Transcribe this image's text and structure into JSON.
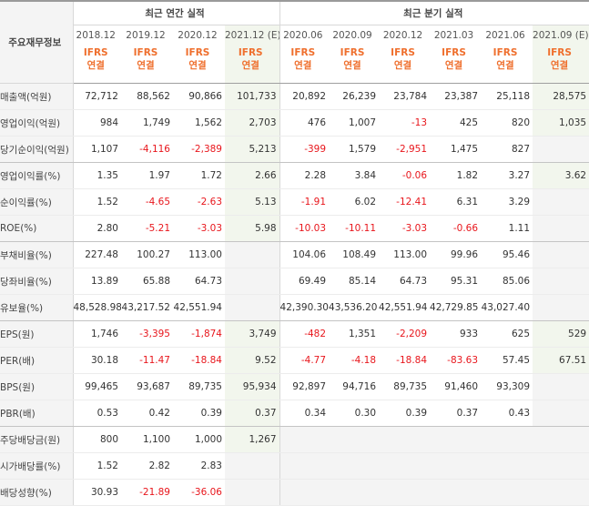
{
  "header": {
    "row_label": "주요재무정보",
    "annual_title": "최근 연간 실적",
    "quarterly_title": "최근 분기 실적",
    "ifrs_line1": "IFRS",
    "ifrs_line2": "연결"
  },
  "periods": [
    {
      "label": "2018.12",
      "est": false
    },
    {
      "label": "2019.12",
      "est": false
    },
    {
      "label": "2020.12",
      "est": false
    },
    {
      "label": "2021.12 (E)",
      "est": true
    },
    {
      "label": "2020.06",
      "est": false
    },
    {
      "label": "2020.09",
      "est": false
    },
    {
      "label": "2020.12",
      "est": false
    },
    {
      "label": "2021.03",
      "est": false
    },
    {
      "label": "2021.06",
      "est": false
    },
    {
      "label": "2021.09 (E)",
      "est": true
    }
  ],
  "rows": [
    {
      "label": "매출액(억원)",
      "values": [
        "72,712",
        "88,562",
        "90,866",
        "101,733",
        "20,892",
        "26,239",
        "23,784",
        "23,387",
        "25,118",
        "28,575"
      ]
    },
    {
      "label": "영업이익(억원)",
      "values": [
        "984",
        "1,749",
        "1,562",
        "2,703",
        "476",
        "1,007",
        "-13",
        "425",
        "820",
        "1,035"
      ]
    },
    {
      "label": "당기순이익(억원)",
      "values": [
        "1,107",
        "-4,116",
        "-2,389",
        "5,213",
        "-399",
        "1,579",
        "-2,951",
        "1,475",
        "827",
        ""
      ]
    },
    {
      "label": "영업이익률(%)",
      "values": [
        "1.35",
        "1.97",
        "1.72",
        "2.66",
        "2.28",
        "3.84",
        "-0.06",
        "1.82",
        "3.27",
        "3.62"
      ]
    },
    {
      "label": "순이익률(%)",
      "values": [
        "1.52",
        "-4.65",
        "-2.63",
        "5.13",
        "-1.91",
        "6.02",
        "-12.41",
        "6.31",
        "3.29",
        ""
      ]
    },
    {
      "label": "ROE(%)",
      "values": [
        "2.80",
        "-5.21",
        "-3.03",
        "5.98",
        "-10.03",
        "-10.11",
        "-3.03",
        "-0.66",
        "1.11",
        ""
      ]
    },
    {
      "label": "부채비율(%)",
      "values": [
        "227.48",
        "100.27",
        "113.00",
        "",
        "104.06",
        "108.49",
        "113.00",
        "99.96",
        "95.46",
        ""
      ]
    },
    {
      "label": "당좌비율(%)",
      "values": [
        "13.89",
        "65.88",
        "64.73",
        "",
        "69.49",
        "85.14",
        "64.73",
        "95.31",
        "85.06",
        ""
      ]
    },
    {
      "label": "유보율(%)",
      "values": [
        "48,528.98",
        "43,217.52",
        "42,551.94",
        "",
        "42,390.30",
        "43,536.20",
        "42,551.94",
        "42,729.85",
        "43,027.40",
        ""
      ]
    },
    {
      "label": "EPS(원)",
      "values": [
        "1,746",
        "-3,395",
        "-1,874",
        "3,749",
        "-482",
        "1,351",
        "-2,209",
        "933",
        "625",
        "529"
      ]
    },
    {
      "label": "PER(배)",
      "values": [
        "30.18",
        "-11.47",
        "-18.84",
        "9.52",
        "-4.77",
        "-4.18",
        "-18.84",
        "-83.63",
        "57.45",
        "67.51"
      ]
    },
    {
      "label": "BPS(원)",
      "values": [
        "99,465",
        "93,687",
        "89,735",
        "95,934",
        "92,897",
        "94,716",
        "89,735",
        "91,460",
        "93,309",
        ""
      ]
    },
    {
      "label": "PBR(배)",
      "values": [
        "0.53",
        "0.42",
        "0.39",
        "0.37",
        "0.34",
        "0.30",
        "0.39",
        "0.37",
        "0.43",
        ""
      ]
    },
    {
      "label": "주당배당금(원)",
      "values": [
        "800",
        "1,100",
        "1,000",
        "1,267",
        "",
        "",
        "",
        "",
        "",
        ""
      ]
    },
    {
      "label": "시가배당률(%)",
      "values": [
        "1.52",
        "2.82",
        "2.83",
        "",
        "",
        "",
        "",
        "",
        "",
        ""
      ]
    },
    {
      "label": "배당성향(%)",
      "values": [
        "30.93",
        "-21.89",
        "-36.06",
        "",
        "",
        "",
        "",
        "",
        "",
        ""
      ]
    }
  ],
  "colors": {
    "ifrs": "#ef6f2d",
    "negative": "#e8161c",
    "estimate_bg": "#f2f6ed",
    "label_bg": "#f4f4f4"
  }
}
